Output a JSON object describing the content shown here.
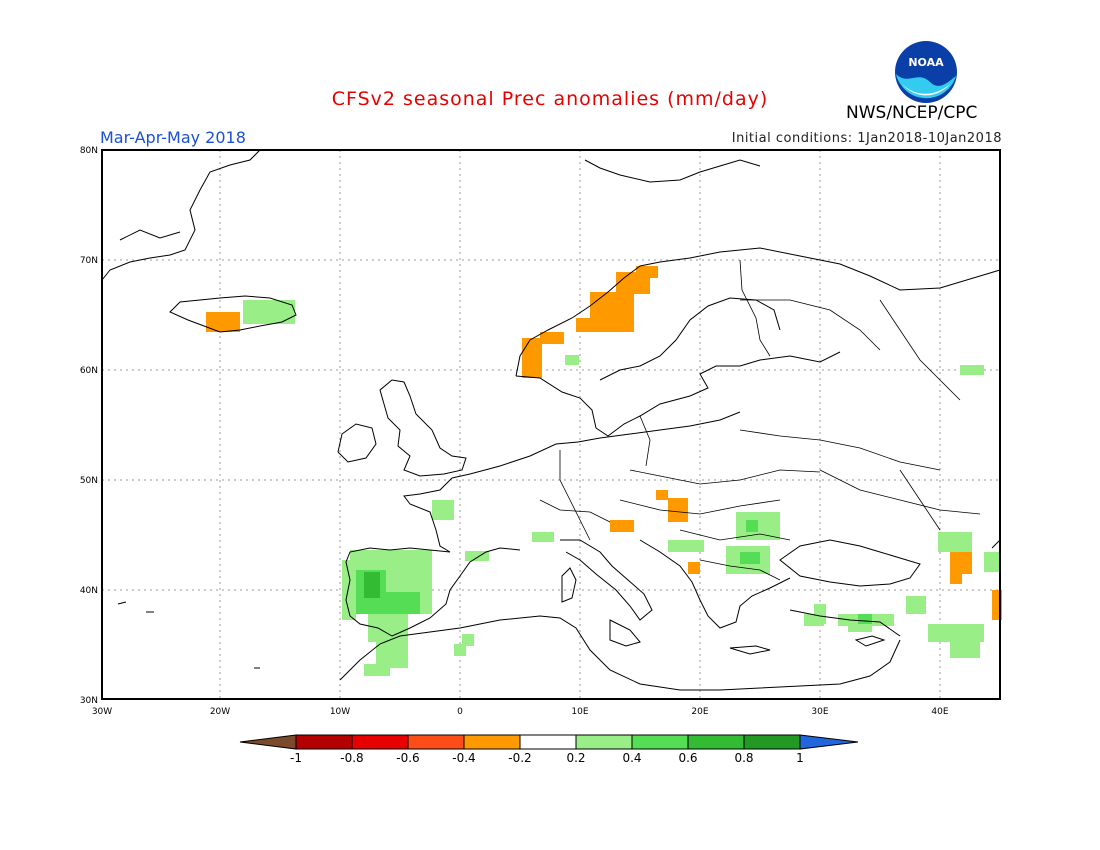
{
  "title": "CFSv2 seasonal Prec anomalies (mm/day)",
  "season": "Mar-Apr-May 2018",
  "initial_conditions": "Initial conditions: 1Jan2018-10Jan2018",
  "agency": "NWS/NCEP/CPC",
  "logo_text": "NOAA",
  "lat_labels": [
    "80N",
    "70N",
    "60N",
    "50N",
    "40N",
    "30N"
  ],
  "lon_labels": [
    "30W",
    "20W",
    "10W",
    "0",
    "10E",
    "20E",
    "30E",
    "40E"
  ],
  "colorbar": {
    "ticks": [
      "-1",
      "-0.8",
      "-0.6",
      "-0.4",
      "-0.2",
      "0.2",
      "0.4",
      "0.6",
      "0.8",
      "1"
    ],
    "colors": [
      "#7a4a2a",
      "#b30000",
      "#e60000",
      "#ff4d1a",
      "#ff9900",
      "#ffffff",
      "#99ee88",
      "#55dd55",
      "#33bb33",
      "#229922",
      "#2266dd"
    ]
  }
}
